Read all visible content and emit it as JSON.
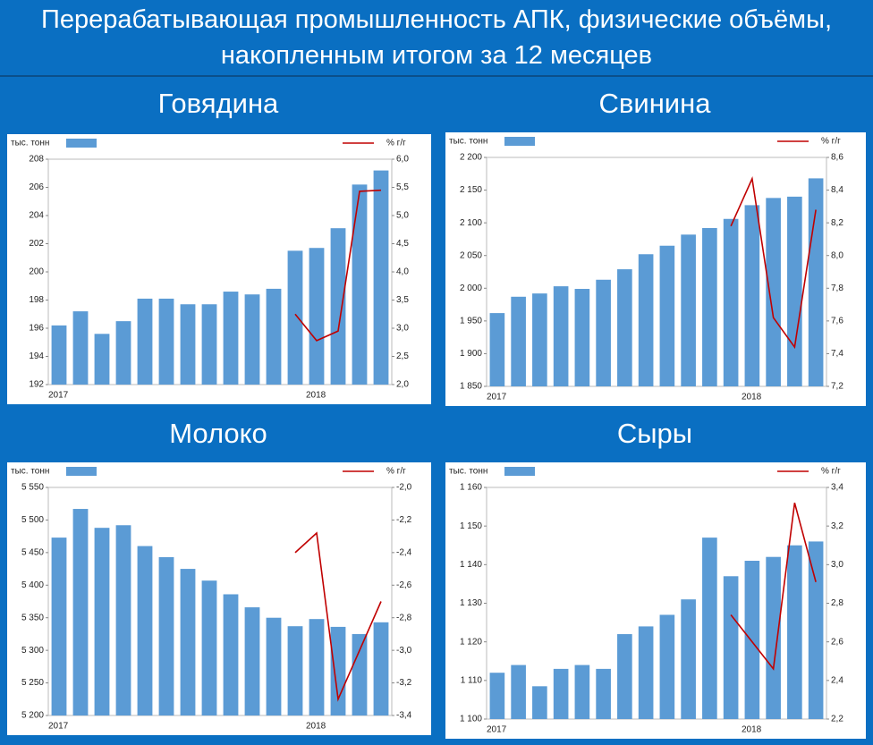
{
  "title": "Перерабатывающая промышленность АПК, физические объёмы, накопленным итогом за 12 месяцев",
  "chart_data": [
    {
      "type": "bar",
      "title": "Говядина",
      "categories": [
        "2017",
        null,
        null,
        null,
        null,
        null,
        null,
        null,
        null,
        null,
        null,
        null,
        "2018",
        null,
        null,
        null
      ],
      "series": [
        {
          "name": "тыс. тонн",
          "color": "#5b9bd5",
          "values": [
            196.2,
            197.2,
            195.6,
            196.5,
            198.1,
            198.1,
            197.7,
            197.7,
            198.6,
            198.4,
            198.8,
            201.5,
            201.7,
            203.1,
            206.2,
            207.2
          ]
        },
        {
          "name": "% г/г",
          "color": "#c00000",
          "type": "line",
          "axis": "y2",
          "values": [
            null,
            null,
            null,
            null,
            null,
            null,
            null,
            null,
            null,
            null,
            null,
            3.25,
            2.78,
            2.95,
            5.43,
            5.45
          ]
        }
      ],
      "ylim": [
        192,
        208
      ],
      "yticks": [
        192,
        194,
        196,
        198,
        200,
        202,
        204,
        206,
        208
      ],
      "y2lim": [
        2.0,
        6.0
      ],
      "y2ticks": [
        {
          "value": 2.0,
          "label": "2,0"
        },
        {
          "value": 2.5,
          "label": "2,5"
        },
        {
          "value": 3.0,
          "label": "3,0"
        },
        {
          "value": 3.5,
          "label": "3,5"
        },
        {
          "value": 4.0,
          "label": "4,0"
        },
        {
          "value": 4.5,
          "label": "4,5"
        },
        {
          "value": 5.0,
          "label": "5,0"
        },
        {
          "value": 5.5,
          "label": "5,5"
        },
        {
          "value": 6.0,
          "label": "6,0"
        }
      ],
      "grid": false
    },
    {
      "type": "bar",
      "title": "Свинина",
      "categories": [
        "2017",
        null,
        null,
        null,
        null,
        null,
        null,
        null,
        null,
        null,
        null,
        null,
        "2018",
        null,
        null,
        null
      ],
      "series": [
        {
          "name": "тыс. тонн",
          "color": "#5b9bd5",
          "values": [
            1962,
            1987,
            1992,
            2003,
            1999,
            2013,
            2029,
            2052,
            2065,
            2082,
            2092,
            2106,
            2127,
            2138,
            2140,
            2168
          ]
        },
        {
          "name": "% г/г",
          "color": "#c00000",
          "type": "line",
          "axis": "y2",
          "values": [
            null,
            null,
            null,
            null,
            null,
            null,
            null,
            null,
            null,
            null,
            null,
            8.18,
            8.47,
            7.62,
            7.44,
            8.28
          ]
        }
      ],
      "ylim": [
        1850,
        2200
      ],
      "yticks": [
        {
          "value": 1850,
          "label": "1 850"
        },
        {
          "value": 1900,
          "label": "1 900"
        },
        {
          "value": 1950,
          "label": "1 950"
        },
        {
          "value": 2000,
          "label": "2 000"
        },
        {
          "value": 2050,
          "label": "2 050"
        },
        {
          "value": 2100,
          "label": "2 100"
        },
        {
          "value": 2150,
          "label": "2 150"
        },
        {
          "value": 2200,
          "label": "2 200"
        }
      ],
      "y2lim": [
        7.2,
        8.6
      ],
      "y2ticks": [
        {
          "value": 7.2,
          "label": "7,2"
        },
        {
          "value": 7.4,
          "label": "7,4"
        },
        {
          "value": 7.6,
          "label": "7,6"
        },
        {
          "value": 7.8,
          "label": "7,8"
        },
        {
          "value": 8.0,
          "label": "8,0"
        },
        {
          "value": 8.2,
          "label": "8,2"
        },
        {
          "value": 8.4,
          "label": "8,4"
        },
        {
          "value": 8.6,
          "label": "8,6"
        }
      ],
      "grid": false
    },
    {
      "type": "bar",
      "title": "Молоко",
      "categories": [
        "2017",
        null,
        null,
        null,
        null,
        null,
        null,
        null,
        null,
        null,
        null,
        null,
        "2018",
        null,
        null,
        null
      ],
      "series": [
        {
          "name": "тыс. тонн",
          "color": "#5b9bd5",
          "values": [
            5473,
            5517,
            5488,
            5492,
            5460,
            5443,
            5425,
            5407,
            5386,
            5366,
            5350,
            5337,
            5348,
            5336,
            5325,
            5343
          ]
        },
        {
          "name": "% г/г",
          "color": "#c00000",
          "type": "line",
          "axis": "y2",
          "values": [
            null,
            null,
            null,
            null,
            null,
            null,
            null,
            null,
            null,
            null,
            null,
            -2.4,
            -2.28,
            -3.3,
            -3.0,
            -2.7
          ]
        }
      ],
      "ylim": [
        5200,
        5550
      ],
      "yticks": [
        {
          "value": 5200,
          "label": "5 200"
        },
        {
          "value": 5250,
          "label": "5 250"
        },
        {
          "value": 5300,
          "label": "5 300"
        },
        {
          "value": 5350,
          "label": "5 350"
        },
        {
          "value": 5400,
          "label": "5 400"
        },
        {
          "value": 5450,
          "label": "5 450"
        },
        {
          "value": 5500,
          "label": "5 500"
        },
        {
          "value": 5550,
          "label": "5 550"
        }
      ],
      "y2lim": [
        -3.4,
        -2.0
      ],
      "y2ticks": [
        {
          "value": -3.4,
          "label": "-3,4"
        },
        {
          "value": -3.2,
          "label": "-3,2"
        },
        {
          "value": -3.0,
          "label": "-3,0"
        },
        {
          "value": -2.8,
          "label": "-2,8"
        },
        {
          "value": -2.6,
          "label": "-2,6"
        },
        {
          "value": -2.4,
          "label": "-2,4"
        },
        {
          "value": -2.2,
          "label": "-2,2"
        },
        {
          "value": -2.0,
          "label": "-2,0"
        }
      ],
      "grid": false
    },
    {
      "type": "bar",
      "title": "Сыры",
      "categories": [
        "2017",
        null,
        null,
        null,
        null,
        null,
        null,
        null,
        null,
        null,
        null,
        null,
        "2018",
        null,
        null,
        null
      ],
      "series": [
        {
          "name": "тыс. тонн",
          "color": "#5b9bd5",
          "values": [
            1112,
            1114,
            1108.5,
            1113,
            1114,
            1113,
            1122,
            1124,
            1127,
            1131,
            1147,
            1137,
            1141,
            1142,
            1145,
            1146
          ]
        },
        {
          "name": "% г/г",
          "color": "#c00000",
          "type": "line",
          "axis": "y2",
          "values": [
            null,
            null,
            null,
            null,
            null,
            null,
            null,
            null,
            null,
            null,
            null,
            2.74,
            2.6,
            2.46,
            3.32,
            2.91
          ]
        }
      ],
      "ylim": [
        1100,
        1160
      ],
      "yticks": [
        {
          "value": 1100,
          "label": "1 100"
        },
        {
          "value": 1110,
          "label": "1 110"
        },
        {
          "value": 1120,
          "label": "1 120"
        },
        {
          "value": 1130,
          "label": "1 130"
        },
        {
          "value": 1140,
          "label": "1 140"
        },
        {
          "value": 1150,
          "label": "1 150"
        },
        {
          "value": 1160,
          "label": "1 160"
        }
      ],
      "y2lim": [
        2.2,
        3.4
      ],
      "y2ticks": [
        {
          "value": 2.2,
          "label": "2,2"
        },
        {
          "value": 2.4,
          "label": "2,4"
        },
        {
          "value": 2.6,
          "label": "2,6"
        },
        {
          "value": 2.8,
          "label": "2,8"
        },
        {
          "value": 3.0,
          "label": "3,0"
        },
        {
          "value": 3.2,
          "label": "3,2"
        },
        {
          "value": 3.4,
          "label": "3,4"
        }
      ],
      "grid": false
    }
  ]
}
